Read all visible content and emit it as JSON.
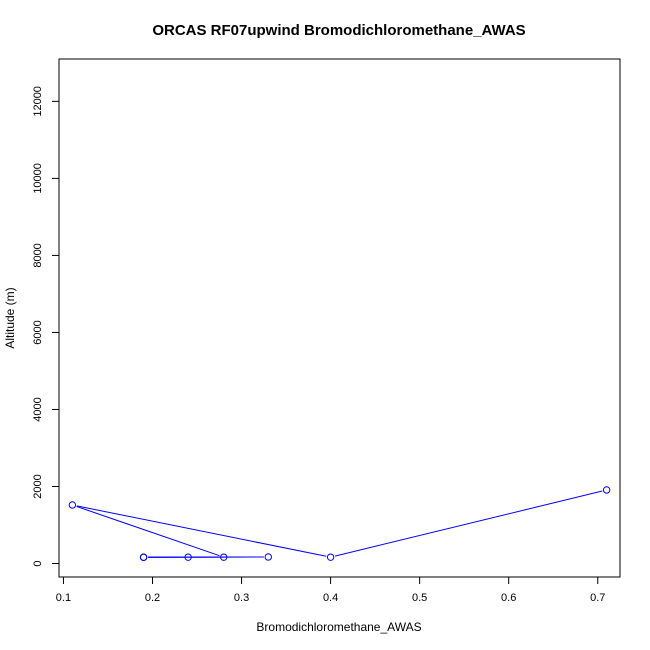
{
  "chart_data": {
    "type": "line",
    "title": "ORCAS RF07upwind Bromodichloromethane_AWAS",
    "xlabel": "Bromodichloromethane_AWAS",
    "ylabel": "Altitude (m)",
    "xlim": [
      0.095,
      0.725
    ],
    "ylim": [
      -350,
      13100
    ],
    "x_ticks": [
      0.1,
      0.2,
      0.3,
      0.4,
      0.5,
      0.6,
      0.7
    ],
    "x_tick_labels": [
      "0.1",
      "0.2",
      "0.3",
      "0.4",
      "0.5",
      "0.6",
      "0.7"
    ],
    "y_ticks": [
      0,
      2000,
      4000,
      6000,
      8000,
      10000,
      12000
    ],
    "y_tick_labels": [
      "0",
      "2000",
      "4000",
      "6000",
      "8000",
      "10000",
      "12000"
    ],
    "grid": false,
    "marker": "open-circle",
    "series": [
      {
        "color": "#0000ff",
        "points": [
          {
            "x": 0.19,
            "y": 160
          },
          {
            "x": 0.33,
            "y": 170
          },
          {
            "x": 0.19,
            "y": 165
          },
          {
            "x": 0.24,
            "y": 165
          },
          {
            "x": 0.28,
            "y": 165
          },
          {
            "x": 0.11,
            "y": 1520
          },
          {
            "x": 0.4,
            "y": 165
          },
          {
            "x": 0.71,
            "y": 1910
          }
        ]
      }
    ]
  }
}
